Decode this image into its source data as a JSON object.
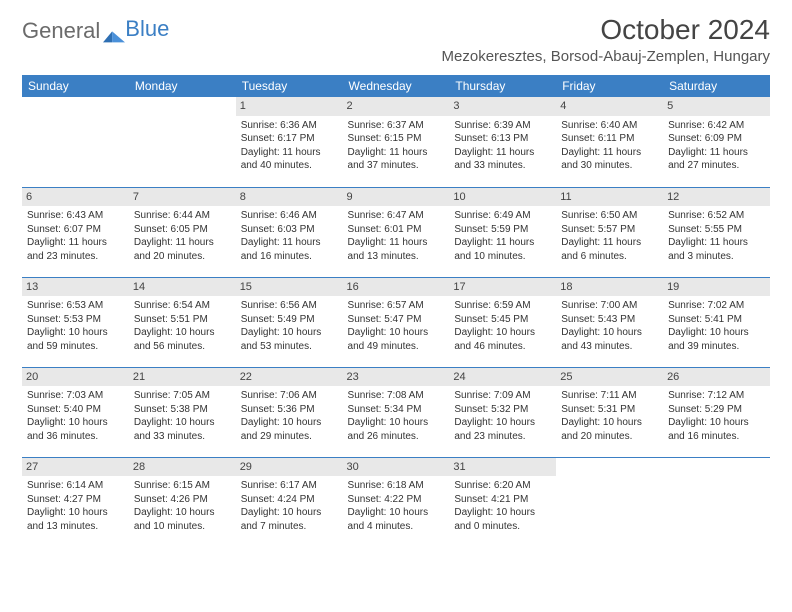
{
  "brand": {
    "part1": "General",
    "part2": "Blue"
  },
  "title": "October 2024",
  "subtitle": "Mezokeresztes, Borsod-Abauj-Zemplen, Hungary",
  "colors": {
    "header_bg": "#3b7fc4",
    "header_fg": "#ffffff",
    "daynum_bg": "#e8e8e8",
    "text": "#333333",
    "rule": "#3b7fc4",
    "page_bg": "#ffffff"
  },
  "weekdays": [
    "Sunday",
    "Monday",
    "Tuesday",
    "Wednesday",
    "Thursday",
    "Friday",
    "Saturday"
  ],
  "weeks": [
    [
      {
        "n": "",
        "sunrise": "",
        "sunset": "",
        "daylight": ""
      },
      {
        "n": "",
        "sunrise": "",
        "sunset": "",
        "daylight": ""
      },
      {
        "n": "1",
        "sunrise": "Sunrise: 6:36 AM",
        "sunset": "Sunset: 6:17 PM",
        "daylight": "Daylight: 11 hours and 40 minutes."
      },
      {
        "n": "2",
        "sunrise": "Sunrise: 6:37 AM",
        "sunset": "Sunset: 6:15 PM",
        "daylight": "Daylight: 11 hours and 37 minutes."
      },
      {
        "n": "3",
        "sunrise": "Sunrise: 6:39 AM",
        "sunset": "Sunset: 6:13 PM",
        "daylight": "Daylight: 11 hours and 33 minutes."
      },
      {
        "n": "4",
        "sunrise": "Sunrise: 6:40 AM",
        "sunset": "Sunset: 6:11 PM",
        "daylight": "Daylight: 11 hours and 30 minutes."
      },
      {
        "n": "5",
        "sunrise": "Sunrise: 6:42 AM",
        "sunset": "Sunset: 6:09 PM",
        "daylight": "Daylight: 11 hours and 27 minutes."
      }
    ],
    [
      {
        "n": "6",
        "sunrise": "Sunrise: 6:43 AM",
        "sunset": "Sunset: 6:07 PM",
        "daylight": "Daylight: 11 hours and 23 minutes."
      },
      {
        "n": "7",
        "sunrise": "Sunrise: 6:44 AM",
        "sunset": "Sunset: 6:05 PM",
        "daylight": "Daylight: 11 hours and 20 minutes."
      },
      {
        "n": "8",
        "sunrise": "Sunrise: 6:46 AM",
        "sunset": "Sunset: 6:03 PM",
        "daylight": "Daylight: 11 hours and 16 minutes."
      },
      {
        "n": "9",
        "sunrise": "Sunrise: 6:47 AM",
        "sunset": "Sunset: 6:01 PM",
        "daylight": "Daylight: 11 hours and 13 minutes."
      },
      {
        "n": "10",
        "sunrise": "Sunrise: 6:49 AM",
        "sunset": "Sunset: 5:59 PM",
        "daylight": "Daylight: 11 hours and 10 minutes."
      },
      {
        "n": "11",
        "sunrise": "Sunrise: 6:50 AM",
        "sunset": "Sunset: 5:57 PM",
        "daylight": "Daylight: 11 hours and 6 minutes."
      },
      {
        "n": "12",
        "sunrise": "Sunrise: 6:52 AM",
        "sunset": "Sunset: 5:55 PM",
        "daylight": "Daylight: 11 hours and 3 minutes."
      }
    ],
    [
      {
        "n": "13",
        "sunrise": "Sunrise: 6:53 AM",
        "sunset": "Sunset: 5:53 PM",
        "daylight": "Daylight: 10 hours and 59 minutes."
      },
      {
        "n": "14",
        "sunrise": "Sunrise: 6:54 AM",
        "sunset": "Sunset: 5:51 PM",
        "daylight": "Daylight: 10 hours and 56 minutes."
      },
      {
        "n": "15",
        "sunrise": "Sunrise: 6:56 AM",
        "sunset": "Sunset: 5:49 PM",
        "daylight": "Daylight: 10 hours and 53 minutes."
      },
      {
        "n": "16",
        "sunrise": "Sunrise: 6:57 AM",
        "sunset": "Sunset: 5:47 PM",
        "daylight": "Daylight: 10 hours and 49 minutes."
      },
      {
        "n": "17",
        "sunrise": "Sunrise: 6:59 AM",
        "sunset": "Sunset: 5:45 PM",
        "daylight": "Daylight: 10 hours and 46 minutes."
      },
      {
        "n": "18",
        "sunrise": "Sunrise: 7:00 AM",
        "sunset": "Sunset: 5:43 PM",
        "daylight": "Daylight: 10 hours and 43 minutes."
      },
      {
        "n": "19",
        "sunrise": "Sunrise: 7:02 AM",
        "sunset": "Sunset: 5:41 PM",
        "daylight": "Daylight: 10 hours and 39 minutes."
      }
    ],
    [
      {
        "n": "20",
        "sunrise": "Sunrise: 7:03 AM",
        "sunset": "Sunset: 5:40 PM",
        "daylight": "Daylight: 10 hours and 36 minutes."
      },
      {
        "n": "21",
        "sunrise": "Sunrise: 7:05 AM",
        "sunset": "Sunset: 5:38 PM",
        "daylight": "Daylight: 10 hours and 33 minutes."
      },
      {
        "n": "22",
        "sunrise": "Sunrise: 7:06 AM",
        "sunset": "Sunset: 5:36 PM",
        "daylight": "Daylight: 10 hours and 29 minutes."
      },
      {
        "n": "23",
        "sunrise": "Sunrise: 7:08 AM",
        "sunset": "Sunset: 5:34 PM",
        "daylight": "Daylight: 10 hours and 26 minutes."
      },
      {
        "n": "24",
        "sunrise": "Sunrise: 7:09 AM",
        "sunset": "Sunset: 5:32 PM",
        "daylight": "Daylight: 10 hours and 23 minutes."
      },
      {
        "n": "25",
        "sunrise": "Sunrise: 7:11 AM",
        "sunset": "Sunset: 5:31 PM",
        "daylight": "Daylight: 10 hours and 20 minutes."
      },
      {
        "n": "26",
        "sunrise": "Sunrise: 7:12 AM",
        "sunset": "Sunset: 5:29 PM",
        "daylight": "Daylight: 10 hours and 16 minutes."
      }
    ],
    [
      {
        "n": "27",
        "sunrise": "Sunrise: 6:14 AM",
        "sunset": "Sunset: 4:27 PM",
        "daylight": "Daylight: 10 hours and 13 minutes."
      },
      {
        "n": "28",
        "sunrise": "Sunrise: 6:15 AM",
        "sunset": "Sunset: 4:26 PM",
        "daylight": "Daylight: 10 hours and 10 minutes."
      },
      {
        "n": "29",
        "sunrise": "Sunrise: 6:17 AM",
        "sunset": "Sunset: 4:24 PM",
        "daylight": "Daylight: 10 hours and 7 minutes."
      },
      {
        "n": "30",
        "sunrise": "Sunrise: 6:18 AM",
        "sunset": "Sunset: 4:22 PM",
        "daylight": "Daylight: 10 hours and 4 minutes."
      },
      {
        "n": "31",
        "sunrise": "Sunrise: 6:20 AM",
        "sunset": "Sunset: 4:21 PM",
        "daylight": "Daylight: 10 hours and 0 minutes."
      },
      {
        "n": "",
        "sunrise": "",
        "sunset": "",
        "daylight": ""
      },
      {
        "n": "",
        "sunrise": "",
        "sunset": "",
        "daylight": ""
      }
    ]
  ]
}
